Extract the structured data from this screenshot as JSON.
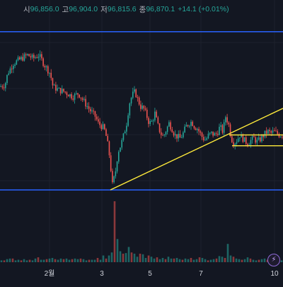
{
  "legend": {
    "open_label": "시",
    "open_value": "96,856.0",
    "high_label": "고",
    "high_value": "96,904.0",
    "low_label": "저",
    "low_value": "96,815.6",
    "close_label": "종",
    "close_value": "96,870.1",
    "change": "+14.1 (+0.01%)"
  },
  "colors": {
    "background": "#131722",
    "up": "#26a69a",
    "down": "#ef5350",
    "horizontal_line": "#2962ff",
    "trendline": "#ffeb3b",
    "grid": "#1e222d",
    "axis_text": "#d1d4dc"
  },
  "icons": {
    "alert": "lightning-icon"
  },
  "chart_data": {
    "type": "candlestick",
    "x_ticks": [
      "2월",
      "3",
      "5",
      "7",
      "10"
    ],
    "x_domain": [
      0,
      100
    ],
    "x_tick_positions": [
      17.5,
      36,
      53,
      71,
      97
    ],
    "price_domain": [
      0,
      100
    ],
    "price_range_top": 100,
    "price_range_bottom": 0,
    "horizontal_lines": [
      {
        "name": "upper",
        "price": 95
      },
      {
        "name": "lower",
        "price": 0
      }
    ],
    "trendlines": [
      {
        "from": [
          39,
          0
        ],
        "to": [
          100,
          49
        ]
      }
    ],
    "channel_lines": [
      {
        "from": [
          81,
          33
        ],
        "to": [
          100,
          33
        ]
      },
      {
        "from": [
          82,
          26.5
        ],
        "to": [
          100,
          26.5
        ]
      }
    ],
    "price_path": [
      [
        0,
        62
      ],
      [
        2,
        63
      ],
      [
        3,
        70
      ],
      [
        5,
        76
      ],
      [
        7,
        78
      ],
      [
        9,
        80
      ],
      [
        10,
        81
      ],
      [
        12,
        79
      ],
      [
        14,
        81
      ],
      [
        16,
        75
      ],
      [
        18,
        70
      ],
      [
        19,
        62
      ],
      [
        21,
        60
      ],
      [
        23,
        59
      ],
      [
        25,
        57
      ],
      [
        26,
        56
      ],
      [
        28,
        58
      ],
      [
        30,
        53
      ],
      [
        32,
        48
      ],
      [
        34,
        44
      ],
      [
        35,
        40
      ],
      [
        37,
        37
      ],
      [
        38,
        31
      ],
      [
        39,
        20
      ],
      [
        40,
        3
      ],
      [
        41,
        10
      ],
      [
        42,
        23
      ],
      [
        43,
        27
      ],
      [
        44,
        33
      ],
      [
        45,
        40
      ],
      [
        46,
        52
      ],
      [
        47,
        57
      ],
      [
        48,
        59
      ],
      [
        49,
        54
      ],
      [
        50,
        50
      ],
      [
        51,
        49
      ],
      [
        52,
        45
      ],
      [
        53,
        40
      ],
      [
        54,
        41
      ],
      [
        55,
        46
      ],
      [
        56,
        39
      ],
      [
        57,
        34
      ],
      [
        58,
        32
      ],
      [
        59,
        36
      ],
      [
        60,
        40
      ],
      [
        61,
        37
      ],
      [
        62,
        33
      ],
      [
        63,
        32
      ],
      [
        64,
        31
      ],
      [
        65,
        34
      ],
      [
        66,
        38
      ],
      [
        67,
        40
      ],
      [
        68,
        41
      ],
      [
        69,
        38
      ],
      [
        70,
        37
      ],
      [
        71,
        34
      ],
      [
        72,
        31
      ],
      [
        73,
        30
      ],
      [
        74,
        33
      ],
      [
        75,
        34
      ],
      [
        76,
        33
      ],
      [
        77,
        34
      ],
      [
        78,
        38
      ],
      [
        79,
        35
      ],
      [
        80,
        44
      ],
      [
        81,
        40
      ],
      [
        82,
        31
      ],
      [
        83,
        28
      ],
      [
        84,
        30
      ],
      [
        85,
        33
      ],
      [
        86,
        31
      ],
      [
        87,
        29
      ],
      [
        88,
        28
      ],
      [
        89,
        30
      ],
      [
        90,
        31
      ],
      [
        91,
        29
      ],
      [
        92,
        30
      ],
      [
        93,
        32
      ],
      [
        94,
        34
      ],
      [
        95,
        35
      ],
      [
        96,
        34
      ],
      [
        97,
        35
      ],
      [
        98,
        34
      ],
      [
        99,
        33
      ]
    ],
    "volume": [
      3,
      3,
      5,
      6,
      6,
      3,
      4,
      3,
      5,
      3,
      4,
      3,
      6,
      8,
      4,
      4,
      5,
      6,
      7,
      5,
      4,
      6,
      5,
      6,
      4,
      5,
      6,
      5,
      6,
      5,
      3,
      4,
      4,
      4,
      7,
      4,
      11,
      6,
      11,
      16,
      100,
      38,
      18,
      14,
      15,
      25,
      16,
      14,
      9,
      14,
      13,
      7,
      11,
      9,
      6,
      8,
      5,
      7,
      5,
      9,
      6,
      6,
      7,
      5,
      4,
      6,
      5,
      7,
      4,
      5,
      8,
      7,
      5,
      3,
      4,
      5,
      6,
      10,
      9,
      7,
      30,
      11,
      9,
      6,
      5,
      4,
      5,
      8,
      6,
      4,
      3,
      4,
      5,
      6,
      4,
      3,
      3,
      4,
      3,
      3
    ]
  }
}
